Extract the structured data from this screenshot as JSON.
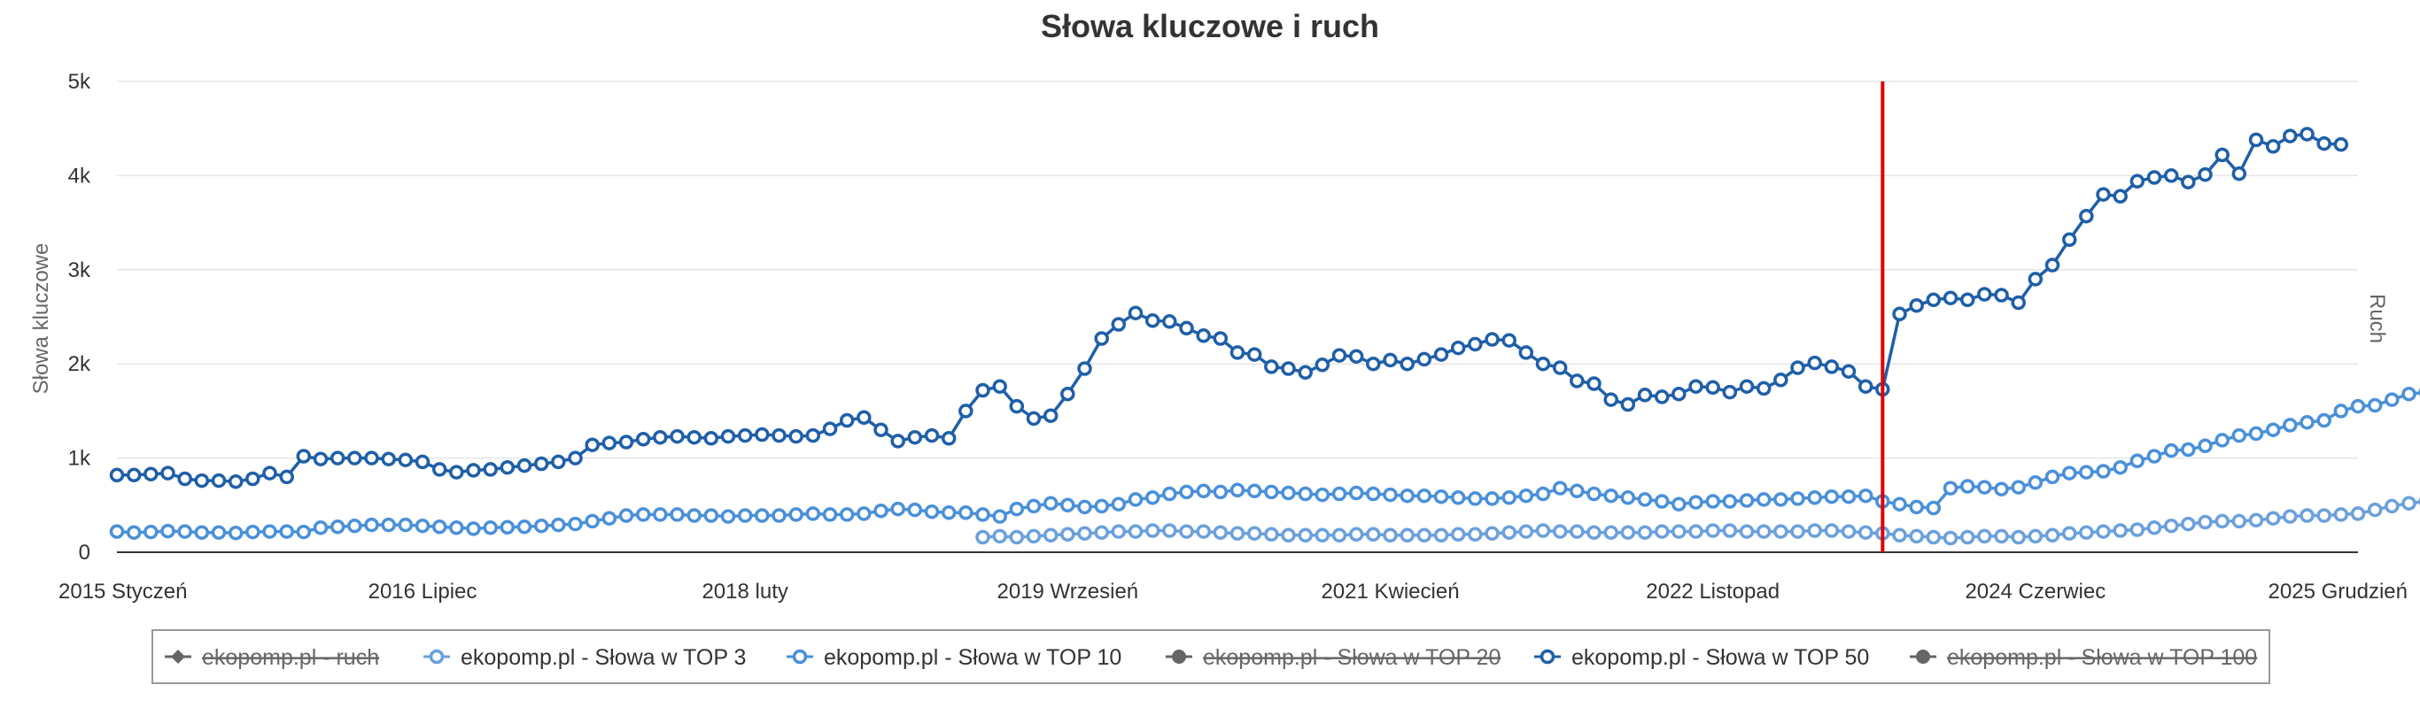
{
  "chart_data": {
    "type": "line",
    "title": "Słowa kluczowe i ruch",
    "ylabel": "Słowa kluczowe",
    "y2label": "Ruch",
    "ylim": [
      0,
      5000
    ],
    "yticks": [
      {
        "value": 0,
        "label": "0"
      },
      {
        "value": 1000,
        "label": "1k"
      },
      {
        "value": 2000,
        "label": "2k"
      },
      {
        "value": 3000,
        "label": "3k"
      },
      {
        "value": 4000,
        "label": "4k"
      },
      {
        "value": 5000,
        "label": "5k"
      }
    ],
    "xlim": [
      0,
      132
    ],
    "xticks": [
      {
        "index": 0,
        "label": "2015 Styczeń"
      },
      {
        "index": 18,
        "label": "2016 Lipiec"
      },
      {
        "index": 37,
        "label": "2018 luty"
      },
      {
        "index": 56,
        "label": "2019 Wrzesień"
      },
      {
        "index": 75,
        "label": "2021 Kwiecień"
      },
      {
        "index": 94,
        "label": "2022 Listopad"
      },
      {
        "index": 113,
        "label": "2024 Czerwiec"
      },
      {
        "index": 132,
        "label": "2025 Grudzień"
      }
    ],
    "marker_index": 104,
    "legend_position": "bottom",
    "series": [
      {
        "name": "ekopomp.pl - ruch",
        "color": "#666666",
        "visible": false,
        "values": []
      },
      {
        "name": "ekopomp.pl - Słowa w TOP 3",
        "color": "#6ba0dc",
        "visible": true,
        "start_index": 51,
        "values": [
          160,
          170,
          160,
          170,
          180,
          190,
          200,
          210,
          220,
          220,
          230,
          230,
          220,
          220,
          210,
          200,
          200,
          190,
          180,
          180,
          180,
          180,
          190,
          190,
          180,
          180,
          180,
          180,
          190,
          190,
          200,
          210,
          220,
          230,
          220,
          220,
          210,
          210,
          210,
          210,
          220,
          220,
          220,
          230,
          230,
          220,
          220,
          220,
          220,
          230,
          230,
          220,
          210,
          200,
          180,
          170,
          160,
          150,
          160,
          170,
          170,
          160,
          170,
          180,
          200,
          210,
          220,
          230,
          240,
          260,
          280,
          300,
          320,
          330,
          330,
          340,
          360,
          380,
          390,
          390,
          400,
          410,
          450,
          490,
          520,
          540,
          530,
          530,
          540,
          530
        ]
      },
      {
        "name": "ekopomp.pl - Słowa w TOP 10",
        "color": "#4a90d9",
        "visible": true,
        "start_index": 0,
        "values": [
          220,
          210,
          215,
          225,
          220,
          210,
          210,
          205,
          215,
          220,
          220,
          215,
          260,
          270,
          280,
          290,
          290,
          290,
          280,
          270,
          260,
          250,
          260,
          265,
          270,
          280,
          290,
          300,
          330,
          360,
          390,
          400,
          400,
          400,
          390,
          390,
          380,
          390,
          390,
          390,
          400,
          410,
          400,
          400,
          410,
          440,
          460,
          450,
          430,
          420,
          420,
          400,
          380,
          460,
          490,
          520,
          500,
          480,
          490,
          510,
          560,
          580,
          620,
          640,
          650,
          640,
          660,
          650,
          640,
          630,
          620,
          610,
          620,
          630,
          620,
          610,
          600,
          600,
          590,
          580,
          570,
          570,
          580,
          600,
          620,
          680,
          650,
          620,
          600,
          580,
          560,
          540,
          510,
          530,
          540,
          540,
          550,
          560,
          560,
          570,
          580,
          590,
          590,
          600,
          540,
          510,
          480,
          470,
          680,
          700,
          690,
          670,
          690,
          740,
          800,
          840,
          850,
          860,
          900,
          970,
          1020,
          1080,
          1090,
          1130,
          1190,
          1240,
          1260,
          1300,
          1350,
          1380,
          1400,
          1500,
          1550,
          1560,
          1620,
          1680,
          1700
        ]
      },
      {
        "name": "ekopomp.pl - Słowa w TOP 20",
        "color": "#666666",
        "visible": false,
        "values": []
      },
      {
        "name": "ekopomp.pl - Słowa w TOP 50",
        "color": "#1f5fa8",
        "visible": true,
        "start_index": 0,
        "values": [
          820,
          820,
          830,
          840,
          780,
          760,
          760,
          750,
          780,
          840,
          800,
          1020,
          990,
          1000,
          1000,
          1000,
          990,
          980,
          960,
          880,
          850,
          870,
          880,
          900,
          920,
          940,
          960,
          1000,
          1140,
          1160,
          1170,
          1200,
          1220,
          1230,
          1220,
          1210,
          1230,
          1240,
          1250,
          1240,
          1230,
          1240,
          1310,
          1400,
          1430,
          1300,
          1180,
          1220,
          1240,
          1210,
          1500,
          1720,
          1760,
          1550,
          1420,
          1450,
          1680,
          1950,
          2270,
          2420,
          2540,
          2460,
          2450,
          2380,
          2300,
          2270,
          2120,
          2100,
          1970,
          1950,
          1910,
          1990,
          2090,
          2080,
          2000,
          2040,
          2000,
          2050,
          2100,
          2170,
          2210,
          2260,
          2250,
          2120,
          2000,
          1960,
          1820,
          1790,
          1620,
          1570,
          1670,
          1650,
          1680,
          1760,
          1750,
          1700,
          1760,
          1740,
          1830,
          1960,
          2010,
          1970,
          1920,
          1760,
          1730,
          2530,
          2620,
          2680,
          2700,
          2680,
          2740,
          2730,
          2650,
          2900,
          3050,
          3320,
          3570,
          3800,
          3780,
          3940,
          3980,
          4000,
          3930,
          4010,
          4220,
          4020,
          4380,
          4310,
          4420,
          4440,
          4340,
          4330
        ]
      },
      {
        "name": "ekopomp.pl - Słowa w TOP 100",
        "color": "#666666",
        "visible": false,
        "values": []
      }
    ]
  }
}
